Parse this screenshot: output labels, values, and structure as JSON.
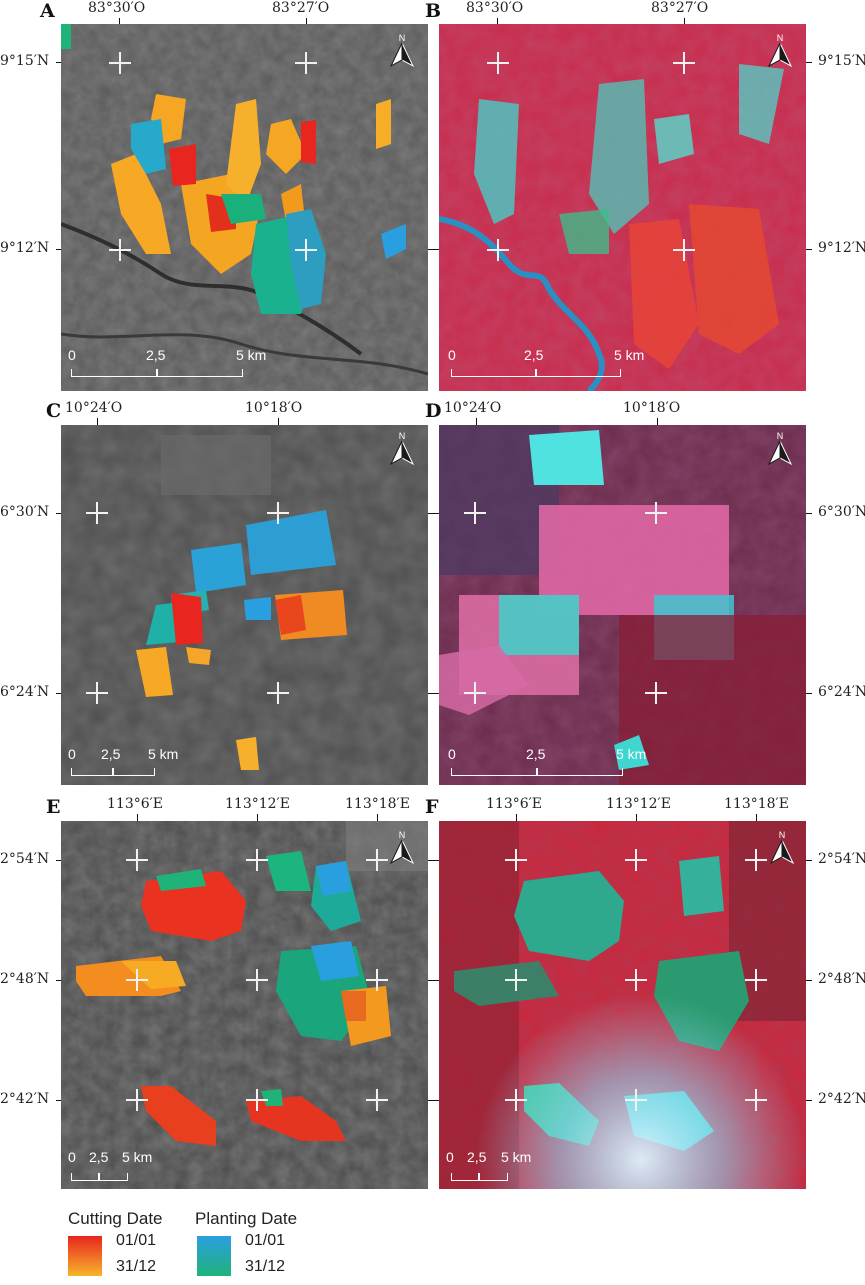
{
  "panels": {
    "A": {
      "label": "A",
      "top_lon": [
        "83°30′O",
        "83°27′O"
      ],
      "left_lat": [
        "9°15′N",
        "9°12′N"
      ],
      "scale": [
        "0",
        "2,5",
        "5 km"
      ]
    },
    "B": {
      "label": "B",
      "top_lon": [
        "83°30′O",
        "83°27′O"
      ],
      "right_lat": [
        "9°15′N",
        "9°12′N"
      ],
      "scale": [
        "0",
        "2,5",
        "5 km"
      ]
    },
    "C": {
      "label": "C",
      "top_lon": [
        "10°24′O",
        "10°18′O"
      ],
      "left_lat": [
        "6°30′N",
        "6°24′N"
      ],
      "scale": [
        "0",
        "2,5",
        "5 km"
      ]
    },
    "D": {
      "label": "D",
      "top_lon": [
        "10°24′O",
        "10°18′O"
      ],
      "right_lat": [
        "6°30′N",
        "6°24′N"
      ],
      "scale": [
        "0",
        "2,5",
        "5 km"
      ]
    },
    "E": {
      "label": "E",
      "top_lon": [
        "113°6′E",
        "113°12′E",
        "113°18′E"
      ],
      "left_lat": [
        "2°54′N",
        "2°48′N",
        "2°42′N"
      ],
      "scale": [
        "0",
        "2,5",
        "5 km"
      ]
    },
    "F": {
      "label": "F",
      "top_lon": [
        "113°6′E",
        "113°12′E",
        "113°18′E"
      ],
      "right_lat": [
        "2°54′N",
        "2°48′N",
        "2°42′N"
      ],
      "scale": [
        "0",
        "2,5",
        "5 km"
      ]
    }
  },
  "north_label": "N",
  "legend": {
    "cutting": {
      "title": "Cutting Date",
      "start": "01/01",
      "end": "31/12",
      "color_start": "#e8251e",
      "color_end": "#f7b52b"
    },
    "planting": {
      "title": "Planting Date",
      "start": "01/01",
      "end": "31/12",
      "color_start": "#2a9fe0",
      "color_end": "#1fb37a"
    }
  },
  "colors": {
    "grayscale_bg": "#4a4a4a",
    "false_color_bg": "#d22a45",
    "water_cyan": "#3fd6d0"
  }
}
